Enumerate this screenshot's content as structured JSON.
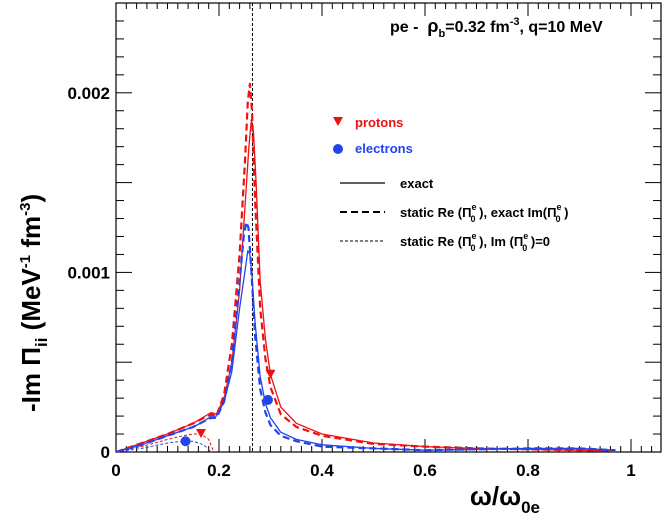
{
  "chart_data": {
    "type": "line",
    "title": {
      "prefix": "pe -  ",
      "rho": "ρ",
      "rho_sub": "b",
      "density": "=0.32 fm",
      "density_exp": "-3",
      "rest": ", q=10 MeV"
    },
    "xlabel": {
      "omega": "ω/ω",
      "sub": "0e"
    },
    "ylabel": {
      "main": "-Im Π",
      "sub": "ii",
      "unit_open": " (MeV",
      "unit_exp1": "-1",
      "unit_mid": " fm",
      "unit_exp2": "-3",
      "unit_close": ")"
    },
    "xlim": [
      0,
      1.05
    ],
    "ylim": [
      0,
      0.0025
    ],
    "x_ticks": [
      {
        "value": 0,
        "label": "0"
      },
      {
        "value": 0.2,
        "label": "0.2"
      },
      {
        "value": 0.4,
        "label": "0.4"
      },
      {
        "value": 0.6,
        "label": "0.6"
      },
      {
        "value": 0.8,
        "label": "0.8"
      },
      {
        "value": 1,
        "label": "1"
      }
    ],
    "y_ticks": [
      {
        "value": 0,
        "label": "0"
      },
      {
        "value": 0.001,
        "label": "0.001"
      },
      {
        "value": 0.002,
        "label": "0.002"
      }
    ],
    "vline_x": 0.265,
    "colors": {
      "protons": "#ee1111",
      "electrons": "#2244ee",
      "black": "#000000"
    },
    "legend": {
      "species": [
        {
          "marker": "triangle",
          "color": "#ee1111",
          "label": "protons"
        },
        {
          "marker": "circle",
          "color": "#2244ee",
          "label": "electrons"
        }
      ],
      "lines": [
        {
          "style": "solid",
          "label": "exact"
        },
        {
          "style": "dashed",
          "label_a": "static Re (Π",
          "sup_a": "e",
          "sub_a": "0",
          "label_b": " ), exact Im(Π",
          "sup_b": "e",
          "sub_b": "0",
          "label_c": " )"
        },
        {
          "style": "dotted",
          "label_a": "static Re (Π",
          "sup_a": "e",
          "sub_a": "0",
          "label_b": " ), Im (Π",
          "sup_b": "e",
          "sub_b": "0",
          "label_c": " )=0"
        }
      ]
    },
    "series": [
      {
        "name": "protons exact",
        "species": "protons",
        "style": "solid",
        "x": [
          0,
          0.05,
          0.1,
          0.15,
          0.17,
          0.185,
          0.195,
          0.21,
          0.225,
          0.24,
          0.25,
          0.258,
          0.263,
          0.267,
          0.272,
          0.28,
          0.29,
          0.3,
          0.32,
          0.35,
          0.4,
          0.5,
          0.6,
          0.7,
          0.8,
          0.9,
          0.97
        ],
        "y": [
          0,
          5e-05,
          0.0001,
          0.00016,
          0.000195,
          0.00022,
          0.00021,
          0.0003,
          0.0005,
          0.0009,
          0.00135,
          0.0017,
          0.00185,
          0.00178,
          0.0015,
          0.00095,
          0.00063,
          0.00043,
          0.00025,
          0.00016,
          0.0001,
          5e-05,
          3e-05,
          2e-05,
          1.5e-05,
          1e-05,
          5e-06
        ]
      },
      {
        "name": "protons static Re, exact Im",
        "species": "protons",
        "style": "dashed",
        "x": [
          0,
          0.05,
          0.1,
          0.15,
          0.17,
          0.185,
          0.195,
          0.21,
          0.225,
          0.24,
          0.25,
          0.256,
          0.26,
          0.264,
          0.27,
          0.28,
          0.29,
          0.3,
          0.32,
          0.35,
          0.4,
          0.5,
          0.6,
          0.7,
          0.8,
          0.9,
          0.97
        ],
        "y": [
          0,
          5e-05,
          0.0001,
          0.00016,
          0.00019,
          0.00021,
          0.0002,
          0.00032,
          0.0006,
          0.0011,
          0.0016,
          0.00195,
          0.00205,
          0.0019,
          0.0014,
          0.0008,
          0.00052,
          0.00036,
          0.00021,
          0.00014,
          9e-05,
          4.5e-05,
          3e-05,
          2e-05,
          1.5e-05,
          1e-05,
          5e-06
        ]
      },
      {
        "name": "protons static Re, Im=0",
        "species": "protons",
        "style": "dotted",
        "x": [
          0,
          0.05,
          0.1,
          0.13,
          0.15,
          0.165,
          0.18,
          0.19
        ],
        "y": [
          0,
          3e-05,
          7e-05,
          9e-05,
          0.0001,
          0.0001,
          7e-05,
          0
        ],
        "marker": {
          "x": 0.165,
          "y": 0.0001,
          "shape": "triangle"
        }
      },
      {
        "name": "protons marker tail",
        "species": "protons",
        "style": "none",
        "x": [],
        "y": [],
        "marker": {
          "x": 0.3,
          "y": 0.00043,
          "shape": "triangle"
        }
      },
      {
        "name": "electrons exact",
        "species": "electrons",
        "style": "solid",
        "x": [
          0,
          0.05,
          0.1,
          0.15,
          0.17,
          0.185,
          0.195,
          0.21,
          0.225,
          0.24,
          0.25,
          0.256,
          0.26,
          0.264,
          0.27,
          0.28,
          0.29,
          0.3,
          0.32,
          0.35,
          0.4,
          0.5,
          0.6,
          0.7,
          0.8,
          0.9,
          0.97
        ],
        "y": [
          0,
          4e-05,
          9e-05,
          0.00014,
          0.00017,
          0.0002,
          0.0002,
          0.00028,
          0.00045,
          0.0008,
          0.001,
          0.00112,
          0.0011,
          0.00098,
          0.00072,
          0.00042,
          0.00027,
          0.00019,
          0.00011,
          7e-05,
          4e-05,
          2e-05,
          1e-05,
          1.5e-05,
          2e-05,
          2e-05,
          1e-05
        ]
      },
      {
        "name": "electrons static Re, exact Im",
        "species": "electrons",
        "style": "dashed",
        "x": [
          0,
          0.05,
          0.1,
          0.15,
          0.17,
          0.185,
          0.195,
          0.21,
          0.225,
          0.24,
          0.248,
          0.253,
          0.257,
          0.262,
          0.27,
          0.28,
          0.29,
          0.3,
          0.32,
          0.35,
          0.4,
          0.5,
          0.6,
          0.7,
          0.8,
          0.9,
          0.97
        ],
        "y": [
          0,
          4e-05,
          9e-05,
          0.00014,
          0.00017,
          0.00019,
          0.00019,
          0.00028,
          0.0005,
          0.00095,
          0.0012,
          0.00128,
          0.00125,
          0.00105,
          0.00065,
          0.00035,
          0.00022,
          0.00015,
          9e-05,
          6e-05,
          3e-05,
          2e-05,
          1e-05,
          1.5e-05,
          2e-05,
          2e-05,
          1e-05
        ]
      },
      {
        "name": "electrons static Re, Im=0",
        "species": "electrons",
        "style": "dotted",
        "x": [
          0,
          0.05,
          0.1,
          0.13,
          0.15,
          0.17,
          0.185
        ],
        "y": [
          0,
          2e-05,
          5e-05,
          6e-05,
          6e-05,
          4e-05,
          0
        ],
        "marker": {
          "x": 0.135,
          "y": 6e-05,
          "shape": "circle"
        }
      },
      {
        "name": "electrons marker tail",
        "species": "electrons",
        "style": "none",
        "x": [],
        "y": [],
        "marker": {
          "x": 0.295,
          "y": 0.00029,
          "shape": "circle"
        }
      }
    ]
  }
}
